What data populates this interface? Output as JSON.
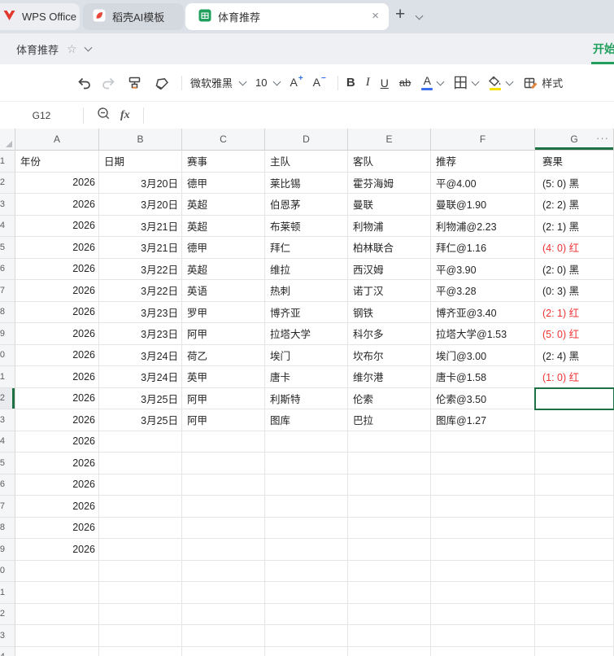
{
  "tab_bar": {
    "tabs": [
      {
        "label": "WPS Office"
      },
      {
        "label": "稻壳AI模板"
      },
      {
        "label": "体育推荐",
        "active": true
      }
    ],
    "close_glyph": "×",
    "new_tab_glyph": "+"
  },
  "title_bar": {
    "doc_title": "体育推荐",
    "star_glyph": "☆",
    "ribbon_tab": "开始"
  },
  "toolbar": {
    "font_name": "微软雅黑",
    "font_size": "10",
    "bold": "B",
    "italic": "I",
    "underline": "U",
    "strikethrough": "ab",
    "font_color_letter": "A",
    "grow_letter": "A",
    "grow_sign": "+",
    "shrink_letter": "A",
    "shrink_sign": "−",
    "borders_glyph": "田",
    "styles_label": "样式",
    "font_color_hex": "#3a6ff0",
    "fill_color_hex": "#f5e000"
  },
  "formula_bar": {
    "name_box": "G12",
    "fx_label": "fx"
  },
  "grid": {
    "column_letters": [
      "A",
      "B",
      "C",
      "D",
      "E",
      "F",
      "G"
    ],
    "more_glyph": "···",
    "selected": {
      "row": 12,
      "col": "g"
    },
    "accent_green": "#1e7145",
    "result_red": "#ee3333",
    "rows": [
      {
        "n": 1,
        "left": true,
        "a": "年份",
        "b": "日期",
        "c": "赛事",
        "d": "主队",
        "e": "客队",
        "f": "推荐",
        "g": "赛果"
      },
      {
        "n": 2,
        "a": "2026",
        "b": "3月20日",
        "c": "德甲",
        "d": "莱比锡",
        "e": "霍芬海姆",
        "f": "平@4.00",
        "g": "(5: 0) 黑"
      },
      {
        "n": 3,
        "a": "2026",
        "b": "3月20日",
        "c": "英超",
        "d": "伯恩茅",
        "e": "曼联",
        "f": "曼联@1.90",
        "g": "(2: 2) 黑"
      },
      {
        "n": 4,
        "a": "2026",
        "b": "3月21日",
        "c": "英超",
        "d": "布莱顿",
        "e": "利物浦",
        "f": "利物浦@2.23",
        "g": "(2: 1) 黑"
      },
      {
        "n": 5,
        "a": "2026",
        "b": "3月21日",
        "c": "德甲",
        "d": "拜仁",
        "e": "柏林联合",
        "f": "拜仁@1.16",
        "g": "(4: 0) 红",
        "red": true
      },
      {
        "n": 6,
        "a": "2026",
        "b": "3月22日",
        "c": "英超",
        "d": "维拉",
        "e": "西汉姆",
        "f": "平@3.90",
        "g": "(2: 0) 黑"
      },
      {
        "n": 7,
        "a": "2026",
        "b": "3月22日",
        "c": "英语",
        "d": "热刺",
        "e": "诺丁汉",
        "f": "平@3.28",
        "g": "(0: 3) 黑"
      },
      {
        "n": 8,
        "a": "2026",
        "b": "3月23日",
        "c": "罗甲",
        "d": "博齐亚",
        "e": "钢铁",
        "f": "博齐亚@3.40",
        "g": "(2: 1) 红",
        "red": true
      },
      {
        "n": 9,
        "a": "2026",
        "b": "3月23日",
        "c": "阿甲",
        "d": "拉塔大学",
        "e": "科尔多",
        "f": "拉塔大学@1.53",
        "g": "(5: 0) 红",
        "red": true
      },
      {
        "n": 10,
        "a": "2026",
        "b": "3月24日",
        "c": "荷乙",
        "d": "埃门",
        "e": "坎布尔",
        "f": "埃门@3.00",
        "g": "(2: 4) 黑"
      },
      {
        "n": 11,
        "a": "2026",
        "b": "3月24日",
        "c": "英甲",
        "d": "唐卡",
        "e": "维尔港",
        "f": "唐卡@1.58",
        "g": "(1: 0) 红",
        "red": true
      },
      {
        "n": 12,
        "a": "2026",
        "b": "3月25日",
        "c": "阿甲",
        "d": "利斯特",
        "e": "伦索",
        "f": "伦索@3.50",
        "g": ""
      },
      {
        "n": 13,
        "a": "2026",
        "b": "3月25日",
        "c": "阿甲",
        "d": "图库",
        "e": "巴拉",
        "f": "图库@1.27",
        "g": ""
      },
      {
        "n": 14,
        "a": "2026"
      },
      {
        "n": 15,
        "a": "2026"
      },
      {
        "n": 16,
        "a": "2026"
      },
      {
        "n": 17,
        "a": "2026"
      },
      {
        "n": 18,
        "a": "2026"
      },
      {
        "n": 19,
        "a": "2026"
      },
      {
        "n": 20
      },
      {
        "n": 21
      },
      {
        "n": 22
      },
      {
        "n": 23
      },
      {
        "n": 24
      }
    ]
  }
}
